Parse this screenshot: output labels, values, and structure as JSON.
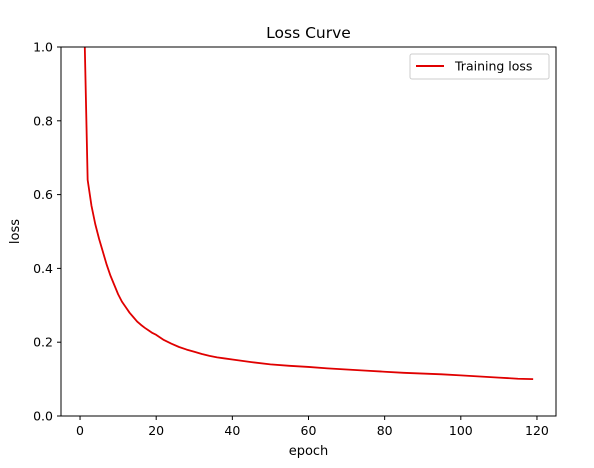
{
  "chart_data": {
    "type": "line",
    "title": "Loss Curve",
    "xlabel": "epoch",
    "ylabel": "loss",
    "xlim": [
      -5,
      125
    ],
    "ylim": [
      0.0,
      1.0
    ],
    "xticks": [
      0,
      20,
      40,
      60,
      80,
      100,
      120
    ],
    "xtick_labels": [
      "0",
      "20",
      "40",
      "60",
      "80",
      "100",
      "120"
    ],
    "yticks": [
      0.0,
      0.2,
      0.4,
      0.6,
      0.8,
      1.0
    ],
    "ytick_labels": [
      "0.0",
      "0.2",
      "0.4",
      "0.6",
      "0.8",
      "1.0"
    ],
    "grid": false,
    "legend_position": "top-right",
    "series": [
      {
        "name": "Training loss",
        "color": "#e00000",
        "x": [
          1,
          2,
          3,
          4,
          5,
          6,
          7,
          8,
          9,
          10,
          11,
          12,
          13,
          14,
          15,
          16,
          17,
          18,
          19,
          20,
          22,
          24,
          26,
          28,
          30,
          32,
          34,
          36,
          38,
          40,
          45,
          50,
          55,
          60,
          65,
          70,
          75,
          80,
          85,
          90,
          95,
          100,
          105,
          110,
          115,
          119
        ],
        "y": [
          1.12,
          0.64,
          0.57,
          0.52,
          0.48,
          0.445,
          0.41,
          0.38,
          0.355,
          0.33,
          0.31,
          0.295,
          0.28,
          0.268,
          0.256,
          0.247,
          0.239,
          0.232,
          0.225,
          0.22,
          0.206,
          0.196,
          0.187,
          0.18,
          0.174,
          0.168,
          0.163,
          0.159,
          0.156,
          0.153,
          0.146,
          0.14,
          0.136,
          0.133,
          0.129,
          0.126,
          0.123,
          0.12,
          0.117,
          0.115,
          0.113,
          0.11,
          0.107,
          0.104,
          0.101,
          0.1
        ]
      }
    ]
  }
}
